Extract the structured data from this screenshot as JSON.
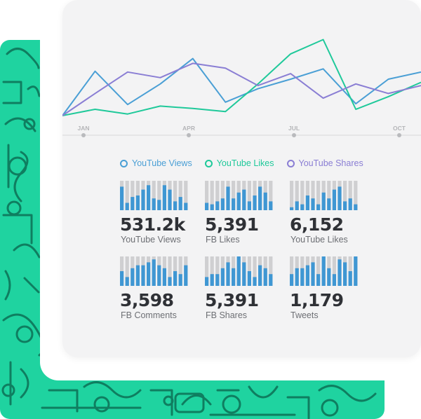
{
  "colors": {
    "pattern_bg": "#1fd3a0",
    "pattern_lines": "#0f7e60",
    "youtube_views": "#4a9fd5",
    "youtube_likes": "#1fc99a",
    "youtube_shares": "#8a7ed4",
    "bar_bg": "#cfcfd1",
    "bar_fill": "#3f97d3",
    "text_dark": "#2f3136",
    "text_muted": "#6d6f74"
  },
  "months": [
    "JAN",
    "APR",
    "JUL",
    "OCT"
  ],
  "legend": [
    {
      "label": "YouTube Views",
      "color": "#4a9fd5"
    },
    {
      "label": "YouTube Likes",
      "color": "#1fc99a"
    },
    {
      "label": "YouTube Shares",
      "color": "#8a7ed4"
    }
  ],
  "chart_data": {
    "type": "line",
    "x": [
      1,
      2,
      3,
      4,
      5,
      6,
      7,
      8,
      9,
      10,
      11,
      12
    ],
    "series": [
      {
        "name": "YouTube Views",
        "values": [
          0,
          56,
          14,
          40,
          72,
          17,
          34,
          46,
          59,
          15,
          46,
          55
        ]
      },
      {
        "name": "YouTube Likes",
        "values": [
          0,
          8,
          2,
          12,
          9,
          5,
          40,
          78,
          96,
          8,
          24,
          42
        ]
      },
      {
        "name": "YouTube Shares",
        "values": [
          0,
          28,
          55,
          48,
          66,
          60,
          38,
          53,
          22,
          40,
          28,
          38
        ]
      }
    ],
    "ylim": [
      0,
      100
    ]
  },
  "tiles": [
    {
      "value": "531.2k",
      "label": "YouTube Views",
      "bars": [
        8,
        2.5,
        4.5,
        5,
        7,
        8.5,
        4,
        3.5,
        8.5,
        7,
        3,
        4.5,
        2.5
      ]
    },
    {
      "value": "5,391",
      "label": "FB Likes",
      "bars": [
        2.5,
        2,
        3,
        4,
        8,
        4,
        6,
        7,
        3,
        5,
        8,
        6,
        3
      ]
    },
    {
      "value": "6,152",
      "label": "YouTube Likes",
      "bars": [
        1,
        3,
        2,
        5,
        4,
        2,
        6,
        4,
        7,
        8,
        3,
        4,
        2
      ]
    },
    {
      "value": "3,598",
      "label": "FB Comments",
      "bars": [
        5,
        3,
        6,
        7,
        7,
        8,
        9,
        7,
        6,
        3,
        5,
        4,
        7
      ]
    },
    {
      "value": "5,391",
      "label": "FB Shares",
      "bars": [
        3,
        4,
        4,
        6,
        8,
        6,
        10,
        8,
        5,
        3,
        7,
        6,
        4
      ]
    },
    {
      "value": "1,179",
      "label": "Tweets",
      "bars": [
        4,
        6,
        6,
        7,
        8,
        4,
        10,
        6,
        4,
        9,
        8,
        5,
        10
      ]
    }
  ]
}
